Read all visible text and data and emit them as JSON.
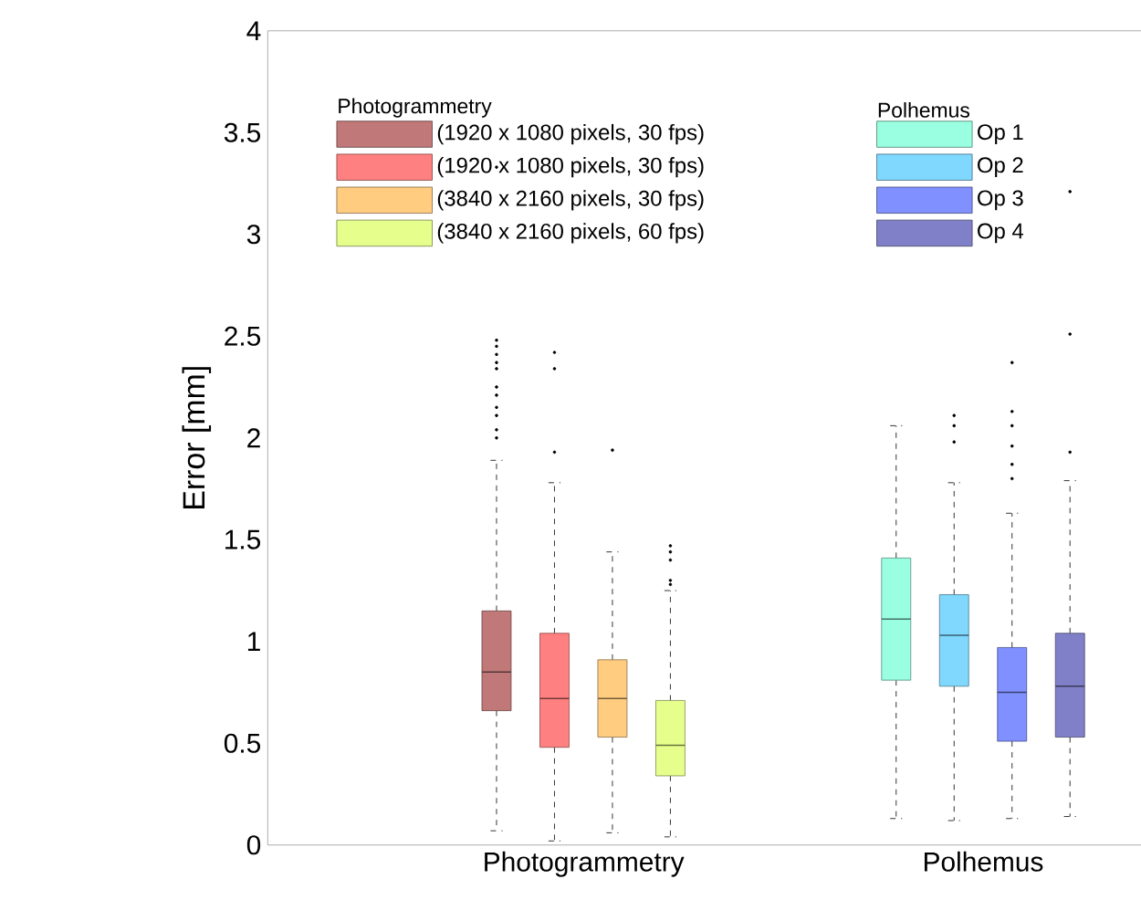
{
  "chart_data": {
    "type": "box",
    "ylabel": "Error [mm]",
    "categories": [
      "Photogrammetry",
      "Polhemus"
    ],
    "ylim": [
      0,
      4
    ],
    "yticks": [
      0,
      0.5,
      1,
      1.5,
      2,
      2.5,
      3,
      3.5,
      4
    ],
    "legend": "top",
    "annotations": [
      "Photogrammetry",
      "Polhemus"
    ],
    "series": [
      {
        "name": "(1920 x 1080 pixels, 30 fps)",
        "color": "#c07878",
        "boxes": [
          {
            "low": 0.07,
            "q1": 0.66,
            "median": 0.85,
            "q3": 1.15,
            "high": 1.89,
            "outliers": [
              2.0,
              2.04,
              2.11,
              2.15,
              2.21,
              2.25,
              2.34,
              2.37,
              2.41,
              2.45,
              2.48,
              3.33
            ]
          },
          null
        ]
      },
      {
        "name": "(1920 x 1080 pixels, 30 fps)",
        "color": "#ff8080",
        "boxes": [
          {
            "low": 0.02,
            "q1": 0.48,
            "median": 0.72,
            "q3": 1.04,
            "high": 1.78,
            "outliers": [
              1.93,
              2.34,
              2.42
            ]
          },
          null
        ]
      },
      {
        "name": "(3840 x 2160 pixels, 30 fps)",
        "color": "#ffcc80",
        "boxes": [
          {
            "low": 0.06,
            "q1": 0.53,
            "median": 0.72,
            "q3": 0.91,
            "high": 1.44,
            "outliers": [
              1.94
            ]
          },
          null
        ]
      },
      {
        "name": "(3840 x 2160 pixels, 60 fps)",
        "color": "#e6ff8c",
        "boxes": [
          {
            "low": 0.04,
            "q1": 0.34,
            "median": 0.49,
            "q3": 0.71,
            "high": 1.25,
            "outliers": [
              1.28,
              1.3,
              1.4,
              1.44,
              1.47
            ]
          },
          null
        ]
      },
      {
        "name": "Op 1",
        "color": "#99ffe0",
        "boxes": [
          null,
          {
            "low": 0.13,
            "q1": 0.81,
            "median": 1.11,
            "q3": 1.41,
            "high": 2.06
          }
        ]
      },
      {
        "name": "Op 2",
        "color": "#80d8ff",
        "boxes": [
          null,
          {
            "low": 0.12,
            "q1": 0.78,
            "median": 1.03,
            "q3": 1.23,
            "high": 1.78,
            "outliers": [
              1.98,
              2.06,
              2.11
            ]
          }
        ]
      },
      {
        "name": "Op 3",
        "color": "#8090ff",
        "boxes": [
          null,
          {
            "low": 0.13,
            "q1": 0.51,
            "median": 0.75,
            "q3": 0.97,
            "high": 1.63,
            "outliers": [
              1.8,
              1.87,
              1.96,
              2.06,
              2.13,
              2.37
            ]
          }
        ]
      },
      {
        "name": "Op 4",
        "color": "#8080c8",
        "boxes": [
          null,
          {
            "low": 0.14,
            "q1": 0.53,
            "median": 0.78,
            "q3": 1.04,
            "high": 1.79,
            "outliers": [
              1.93,
              2.51,
              3.21
            ]
          }
        ]
      }
    ]
  }
}
